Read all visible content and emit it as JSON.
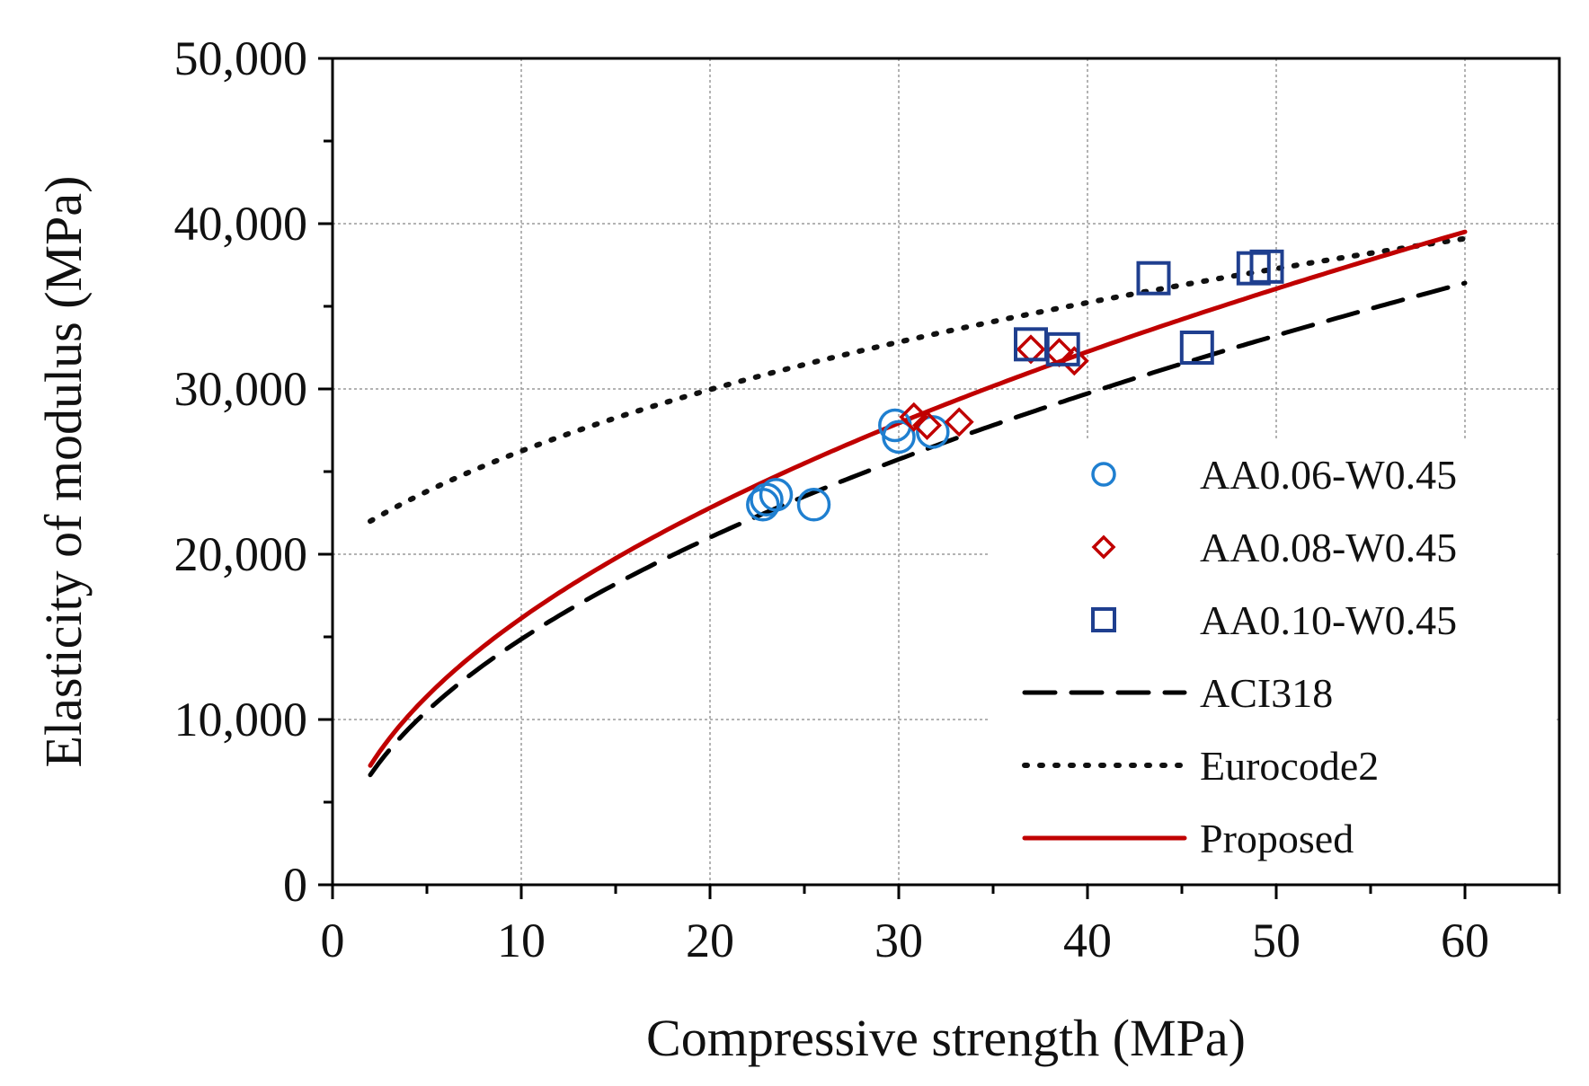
{
  "chart_data": {
    "type": "scatter",
    "title": "",
    "xlabel": "Compressive strength (MPa)",
    "ylabel": "Elasticity of modulus (MPa)",
    "xlim": [
      0,
      65
    ],
    "ylim": [
      0,
      50000
    ],
    "x_ticks": [
      0,
      10,
      20,
      30,
      40,
      50,
      60
    ],
    "x_tick_labels": [
      "0",
      "10",
      "20",
      "30",
      "40",
      "50",
      "60"
    ],
    "y_ticks": [
      0,
      10000,
      20000,
      30000,
      40000,
      50000
    ],
    "y_tick_labels": [
      "0",
      "10,000",
      "20,000",
      "30,000",
      "40,000",
      "50,000"
    ],
    "grid": true,
    "legend_position": "right",
    "series": [
      {
        "name": "AA0.06-W0.45",
        "kind": "points",
        "marker": "circle",
        "color": "#1f7fd0",
        "points": [
          [
            22.8,
            23000
          ],
          [
            23.0,
            23300
          ],
          [
            23.5,
            23600
          ],
          [
            25.5,
            23000
          ],
          [
            29.8,
            27800
          ],
          [
            30.0,
            27100
          ],
          [
            31.8,
            27400
          ]
        ]
      },
      {
        "name": "AA0.08-W0.45",
        "kind": "points",
        "marker": "diamond",
        "color": "#c00000",
        "points": [
          [
            30.8,
            28300
          ],
          [
            31.5,
            27800
          ],
          [
            33.2,
            28000
          ],
          [
            37.0,
            32400
          ],
          [
            38.5,
            32200
          ],
          [
            39.3,
            31700
          ]
        ]
      },
      {
        "name": "AA0.10-W0.45",
        "kind": "points",
        "marker": "square",
        "color": "#1f3f8f",
        "points": [
          [
            37.0,
            32700
          ],
          [
            38.7,
            32400
          ],
          [
            43.5,
            36700
          ],
          [
            45.8,
            32500
          ],
          [
            48.8,
            37300
          ],
          [
            49.5,
            37400
          ]
        ]
      },
      {
        "name": "ACI318",
        "kind": "line",
        "dash": "dashed",
        "color": "#000000",
        "formula": "4700*sqrt(x)",
        "x_range": [
          2,
          60
        ]
      },
      {
        "name": "Eurocode2",
        "kind": "line",
        "dash": "dotted",
        "color": "#111111",
        "formula": "22000*((x+8)/10)^0.3",
        "x_range": [
          2,
          60
        ]
      },
      {
        "name": "Proposed",
        "kind": "line",
        "dash": "solid",
        "color": "#c00000",
        "formula": "5100*x^0.5",
        "x_range": [
          2,
          60
        ]
      }
    ]
  }
}
